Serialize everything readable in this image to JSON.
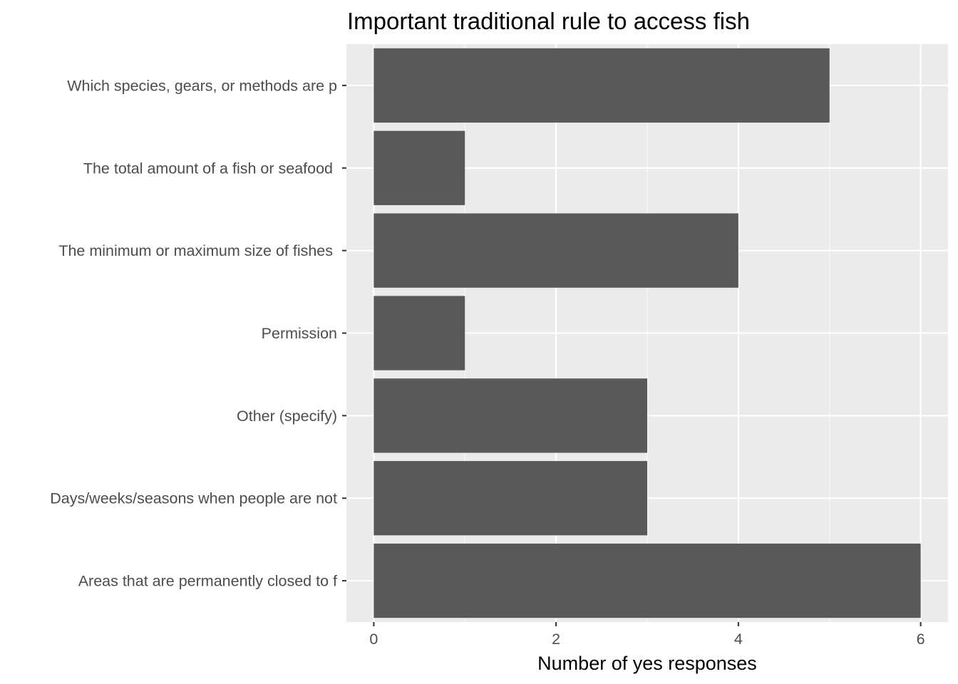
{
  "chart_data": {
    "type": "bar",
    "orientation": "horizontal",
    "title": "Important traditional rule to access fish",
    "xlabel": "Number of yes responses",
    "ylabel": "",
    "categories": [
      "Which species, gears, or methods are p",
      "The total amount of a fish or seafood ",
      "The minimum or maximum size of fishes ",
      "Permission",
      "Other (specify)",
      "Days/weeks/seasons when people are not",
      "Areas that are permanently closed to f"
    ],
    "values": [
      5,
      1,
      4,
      1,
      3,
      3,
      6
    ],
    "xlim": [
      -0.3,
      6.3
    ],
    "xticks": [
      0,
      2,
      4,
      6
    ],
    "xtick_labels": [
      "0",
      "2",
      "4",
      "6"
    ],
    "grid": true,
    "colors": {
      "panel_background": "#ebebeb",
      "grid_major": "#ffffff",
      "bar_fill": "#595959",
      "tick_text": "#4d4d4d",
      "tick_mark": "#333333"
    }
  }
}
